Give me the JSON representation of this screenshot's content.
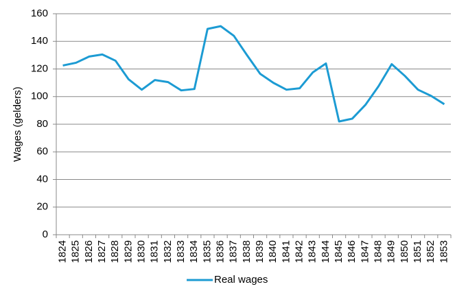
{
  "chart_data": {
    "type": "line",
    "y_label": "Wages (gelders)",
    "categories": [
      "1824",
      "1825",
      "1826",
      "1827",
      "1828",
      "1829",
      "1830",
      "1831",
      "1832",
      "1833",
      "1834",
      "1835",
      "1836",
      "1837",
      "1838",
      "1839",
      "1840",
      "1841",
      "1842",
      "1843",
      "1844",
      "1845",
      "1846",
      "1847",
      "1848",
      "1849",
      "1850",
      "1851",
      "1852",
      "1853"
    ],
    "series": [
      {
        "name": "Real wages",
        "color": "#1c9bd3",
        "values": [
          122.5,
          124.5,
          129,
          130.5,
          126,
          112.5,
          105,
          112,
          110.5,
          104.5,
          105.5,
          149,
          151,
          144,
          130,
          116.5,
          110,
          105,
          106,
          117.5,
          124,
          82,
          84,
          94,
          107.5,
          123.5,
          115,
          105,
          100.5,
          94.5
        ]
      }
    ],
    "ylim": [
      0,
      160
    ],
    "yticks": [
      0,
      20,
      40,
      60,
      80,
      100,
      120,
      140,
      160
    ],
    "grid": true,
    "legend": "bottom"
  }
}
